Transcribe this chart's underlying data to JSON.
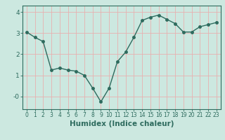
{
  "xlabel": "Humidex (Indice chaleur)",
  "x": [
    0,
    1,
    2,
    3,
    4,
    5,
    6,
    7,
    8,
    9,
    10,
    11,
    12,
    13,
    14,
    15,
    16,
    17,
    18,
    19,
    20,
    21,
    22,
    23
  ],
  "y": [
    3.05,
    2.8,
    2.6,
    1.25,
    1.35,
    1.25,
    1.2,
    1.0,
    0.4,
    -0.25,
    0.4,
    1.65,
    2.1,
    2.8,
    3.6,
    3.75,
    3.85,
    3.65,
    3.45,
    3.05,
    3.05,
    3.3,
    3.4,
    3.5
  ],
  "line_color": "#2e6b5e",
  "marker_size": 2.5,
  "bg_color": "#cce8e0",
  "grid_color": "#e8b0b0",
  "axis_color": "#2e6b5e",
  "label_color": "#2e6b5e",
  "ylim": [
    -0.6,
    4.3
  ],
  "xlim": [
    -0.5,
    23.5
  ],
  "ytick_labels": [
    "-0",
    "1",
    "2",
    "3",
    "4"
  ],
  "ytick_vals": [
    0,
    1,
    2,
    3,
    4
  ],
  "xtick_fontsize": 5.5,
  "ytick_fontsize": 6.5,
  "xlabel_fontsize": 7.5,
  "linewidth": 1.0
}
